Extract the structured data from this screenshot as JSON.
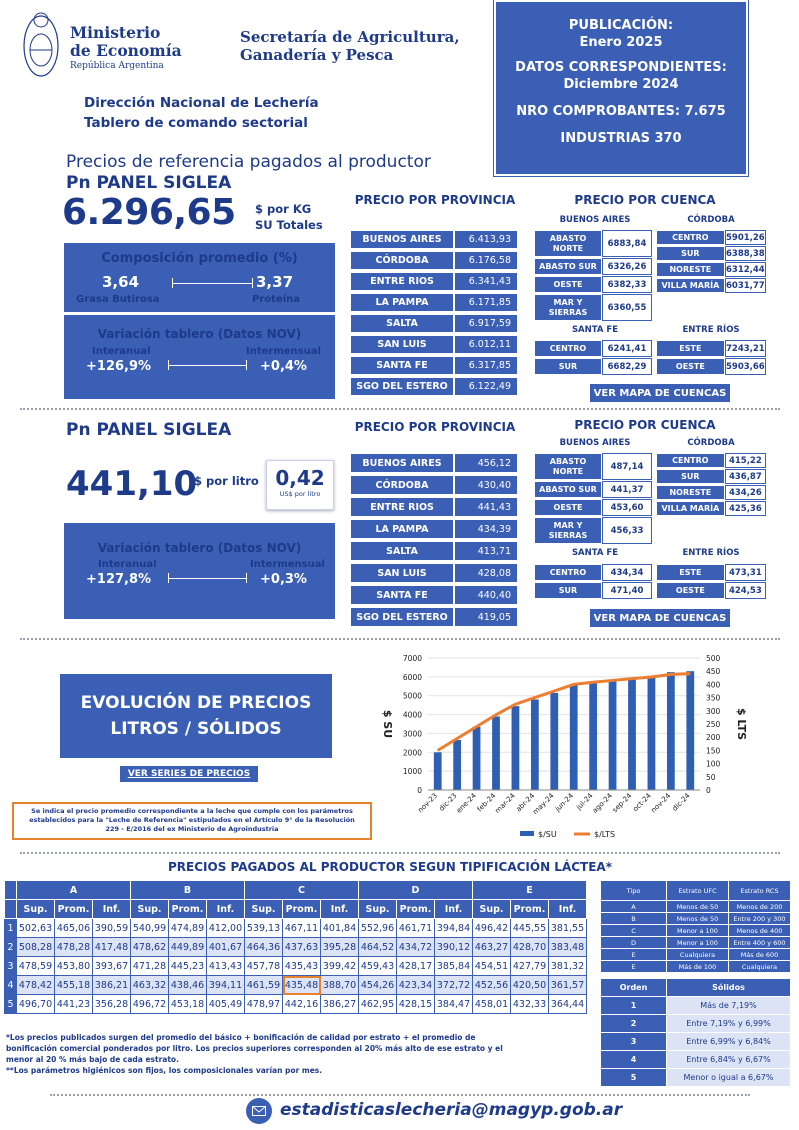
{
  "header": {
    "ministry_line1": "Ministerio",
    "ministry_line2": "de Economía",
    "republic": "República Argentina",
    "secretary_line1": "Secretaría de Agricultura,",
    "secretary_line2": "Ganadería y Pesca",
    "direction": "Dirección Nacional de Lechería",
    "tablero": "Tablero de comando sectorial"
  },
  "info_box": {
    "pub_label": "PUBLICACIÓN:",
    "pub_value": "Enero 2025",
    "datos_label": "DATOS CORRESPONDIENTES:",
    "datos_value": "Diciembre 2024",
    "comprobantes": "NRO COMPROBANTES: 7.675",
    "industrias": "INDUSTRIAS 370"
  },
  "section_title": "Precios de referencia pagados al productor",
  "kg": {
    "panel_title": "Pn PANEL SIGLEA",
    "price": "6.296,65",
    "unit1": "$ por KG",
    "unit2": "SU Totales",
    "comp_title": "Composición promedio (%)",
    "grasa_value": "3,64",
    "grasa_label": "Grasa Butirosa",
    "prot_value": "3,37",
    "prot_label": "Proteína",
    "var_title": "Variación tablero (Datos NOV)",
    "inter_label": "Interanual",
    "inter_value": "+126,9%",
    "mens_label": "Intermensual",
    "mens_value": "+0,4%",
    "prov_title": "PRECIO POR PROVINCIA",
    "provinces": [
      {
        "name": "BUENOS AIRES",
        "value": "6.413,93"
      },
      {
        "name": "CÓRDOBA",
        "value": "6.176,58"
      },
      {
        "name": "ENTRE RIOS",
        "value": "6.341,43"
      },
      {
        "name": "LA PAMPA",
        "value": "6.171,85"
      },
      {
        "name": "SALTA",
        "value": "6.917,59"
      },
      {
        "name": "SAN LUIS",
        "value": "6.012,11"
      },
      {
        "name": "SANTA FE",
        "value": "6.317,85"
      },
      {
        "name": "SGO DEL ESTERO",
        "value": "6.122,49"
      }
    ],
    "cuenca_title": "PRECIO POR CUENCA",
    "ba_title": "BUENOS AIRES",
    "cba_title": "CÓRDOBA",
    "sf_title": "SANTA FE",
    "er_title": "ENTRE RÍOS",
    "ba": [
      {
        "name": "ABASTO NORTE",
        "value": "6883,84"
      },
      {
        "name": "ABASTO SUR",
        "value": "6326,26"
      },
      {
        "name": "OESTE",
        "value": "6382,33"
      },
      {
        "name": "MAR Y SIERRAS",
        "value": "6360,55"
      }
    ],
    "cba": [
      {
        "name": "CENTRO",
        "value": "5901,26"
      },
      {
        "name": "SUR",
        "value": "6388,38"
      },
      {
        "name": "NORESTE",
        "value": "6312,44"
      },
      {
        "name": "VILLA MARÍA",
        "value": "6031,77"
      }
    ],
    "sf": [
      {
        "name": "CENTRO",
        "value": "6241,41"
      },
      {
        "name": "SUR",
        "value": "6682,29"
      }
    ],
    "er": [
      {
        "name": "ESTE",
        "value": "7243,21"
      },
      {
        "name": "OESTE",
        "value": "5903,66"
      }
    ],
    "map_button": "VER MAPA DE CUENCAS"
  },
  "lt": {
    "panel_title": "Pn PANEL SIGLEA",
    "price": "441,10",
    "unit": "$ por litro",
    "usd": "0,42",
    "usd_label": "US$ por litro",
    "var_title": "Variación tablero (Datos NOV)",
    "inter_label": "Interanual",
    "inter_value": "+127,8%",
    "mens_label": "Intermensual",
    "mens_value": "+0,3%",
    "prov_title": "PRECIO POR PROVINCIA",
    "provinces": [
      {
        "name": "BUENOS AIRES",
        "value": "456,12"
      },
      {
        "name": "CÓRDOBA",
        "value": "430,40"
      },
      {
        "name": "ENTRE RIOS",
        "value": "441,43"
      },
      {
        "name": "LA PAMPA",
        "value": "434,39"
      },
      {
        "name": "SALTA",
        "value": "413,71"
      },
      {
        "name": "SAN LUIS",
        "value": "428,08"
      },
      {
        "name": "SANTA FE",
        "value": "440,40"
      },
      {
        "name": "SGO DEL ESTERO",
        "value": "419,05"
      }
    ],
    "cuenca_title": "PRECIO POR CUENCA",
    "ba_title": "BUENOS AIRES",
    "cba_title": "CÓRDOBA",
    "sf_title": "SANTA FE",
    "er_title": "ENTRE RÍOS",
    "ba": [
      {
        "name": "ABASTO NORTE",
        "value": "487,14"
      },
      {
        "name": "ABASTO SUR",
        "value": "441,37"
      },
      {
        "name": "OESTE",
        "value": "453,60"
      },
      {
        "name": "MAR Y SIERRAS",
        "value": "456,33"
      }
    ],
    "cba": [
      {
        "name": "CENTRO",
        "value": "415,22"
      },
      {
        "name": "SUR",
        "value": "436,87"
      },
      {
        "name": "NORESTE",
        "value": "434,26"
      },
      {
        "name": "VILLA MARÍA",
        "value": "425,36"
      }
    ],
    "sf": [
      {
        "name": "CENTRO",
        "value": "434,34"
      },
      {
        "name": "SUR",
        "value": "471,40"
      }
    ],
    "er": [
      {
        "name": "ESTE",
        "value": "473,31"
      },
      {
        "name": "OESTE",
        "value": "424,53"
      }
    ],
    "map_button": "VER MAPA DE CUENCAS"
  },
  "evolution": {
    "title_line1": "EVOLUCIÓN DE PRECIOS",
    "title_line2": "LITROS / SÓLIDOS",
    "button": "VER SERIES DE PRECIOS",
    "note": "Se indica el precio promedio correspondiente a la leche que cumple con los parámetros establecidos para la \"Leche de Referencia\" estipulados en el Artículo 9° de la Resolución 229 - E/2016 del ex Ministerio de Agroindustria"
  },
  "chart_data": {
    "type": "bar",
    "categories": [
      "nov-23",
      "dic-23",
      "ene-24",
      "feb-24",
      "mar-24",
      "abr-24",
      "may-24",
      "jun-24",
      "jul-24",
      "ago-24",
      "sep-24",
      "oct-24",
      "nov-24",
      "dic-24"
    ],
    "series": [
      {
        "name": "$/SU",
        "type": "bar",
        "axis": "left",
        "values": [
          2000,
          2650,
          3350,
          3900,
          4450,
          4800,
          5150,
          5550,
          5650,
          5800,
          5900,
          6050,
          6250,
          6300
        ]
      },
      {
        "name": "$/LTS",
        "type": "line",
        "axis": "right",
        "values": [
          150,
          195,
          240,
          285,
          325,
          350,
          375,
          400,
          408,
          415,
          422,
          428,
          438,
          441
        ]
      }
    ],
    "ylabel": "$ SU",
    "y2label": "$ LTS",
    "ylim": [
      0,
      7000
    ],
    "y2lim": [
      0,
      500
    ],
    "yticks": [
      0,
      1000,
      2000,
      3000,
      4000,
      5000,
      6000,
      7000
    ],
    "y2ticks": [
      0,
      50,
      100,
      150,
      200,
      250,
      300,
      350,
      400,
      450,
      500
    ],
    "colors": {
      "bar": "#2f5fb3",
      "line": "#ed7d31"
    }
  },
  "tipificacion": {
    "title": "PRECIOS PAGADOS AL PRODUCTOR SEGUN TIPIFICACIÓN LÁCTEA*",
    "groups": [
      "A",
      "B",
      "C",
      "D",
      "E"
    ],
    "sub": [
      "Sup.",
      "Prom.",
      "Inf."
    ],
    "rows": [
      {
        "n": "1",
        "v": [
          "502,63",
          "465,06",
          "390,59",
          "540,99",
          "474,89",
          "412,00",
          "539,13",
          "467,11",
          "401,84",
          "552,96",
          "461,71",
          "394,84",
          "496,42",
          "445,55",
          "381,55"
        ]
      },
      {
        "n": "2",
        "v": [
          "508,28",
          "478,28",
          "417,48",
          "478,62",
          "449,89",
          "401,67",
          "464,36",
          "437,63",
          "395,28",
          "464,52",
          "434,72",
          "390,12",
          "463,27",
          "428,70",
          "383,48"
        ]
      },
      {
        "n": "3",
        "v": [
          "478,59",
          "453,80",
          "393,67",
          "471,28",
          "445,23",
          "413,43",
          "457,78",
          "435,43",
          "399,42",
          "459,43",
          "428,17",
          "385,84",
          "454,51",
          "427,79",
          "381,32"
        ]
      },
      {
        "n": "4",
        "v": [
          "478,42",
          "455,18",
          "386,21",
          "463,32",
          "438,46",
          "394,11",
          "461,59",
          "435,48",
          "388,70",
          "454,26",
          "423,34",
          "372,72",
          "452,56",
          "420,50",
          "361,57"
        ]
      },
      {
        "n": "5",
        "v": [
          "496,70",
          "441,23",
          "356,28",
          "496,72",
          "453,18",
          "405,49",
          "478,97",
          "442,16",
          "386,27",
          "462,95",
          "428,15",
          "384,47",
          "458,01",
          "432,33",
          "364,44"
        ]
      }
    ],
    "highlight": "435,48",
    "footnote1": "*Los precios publicados surgen del promedio del básico + bonificación de calidad por estrato + el promedio de bonificación comercial ponderados por litro. Los precios superiores corresponden al 20% más alto de ese estrato y el menor al 20 % más bajo de cada estrato.",
    "footnote2": "**Los parámetros higiénicos son fijos, los composicionales varían por mes."
  },
  "tipo": {
    "h1": "Tipo",
    "h2": "Estrato UFC",
    "h3": "Estrato RCS",
    "rows": [
      [
        "A",
        "Menos de 50",
        "Menos de 200"
      ],
      [
        "B",
        "Menos de 50",
        "Entre 200 y 300"
      ],
      [
        "C",
        "Menor a 100",
        "Menos de 400"
      ],
      [
        "D",
        "Menor a 100",
        "Entre 400 y 600"
      ],
      [
        "E",
        "Cualquiera",
        "Más de 600"
      ],
      [
        "E",
        "Más de 100",
        "Cualquiera"
      ]
    ]
  },
  "orden": {
    "h1": "Orden",
    "h2": "Sólidos",
    "rows": [
      [
        "1",
        "Más de 7,19%"
      ],
      [
        "2",
        "Entre 7,19% y 6,99%"
      ],
      [
        "3",
        "Entre 6,99% y 6,84%"
      ],
      [
        "4",
        "Entre 6,84% y 6,67%"
      ],
      [
        "5",
        "Menor o igual a 6,67%"
      ]
    ]
  },
  "footer": {
    "email": "estadisticaslecheria@magyp.gob.ar"
  }
}
